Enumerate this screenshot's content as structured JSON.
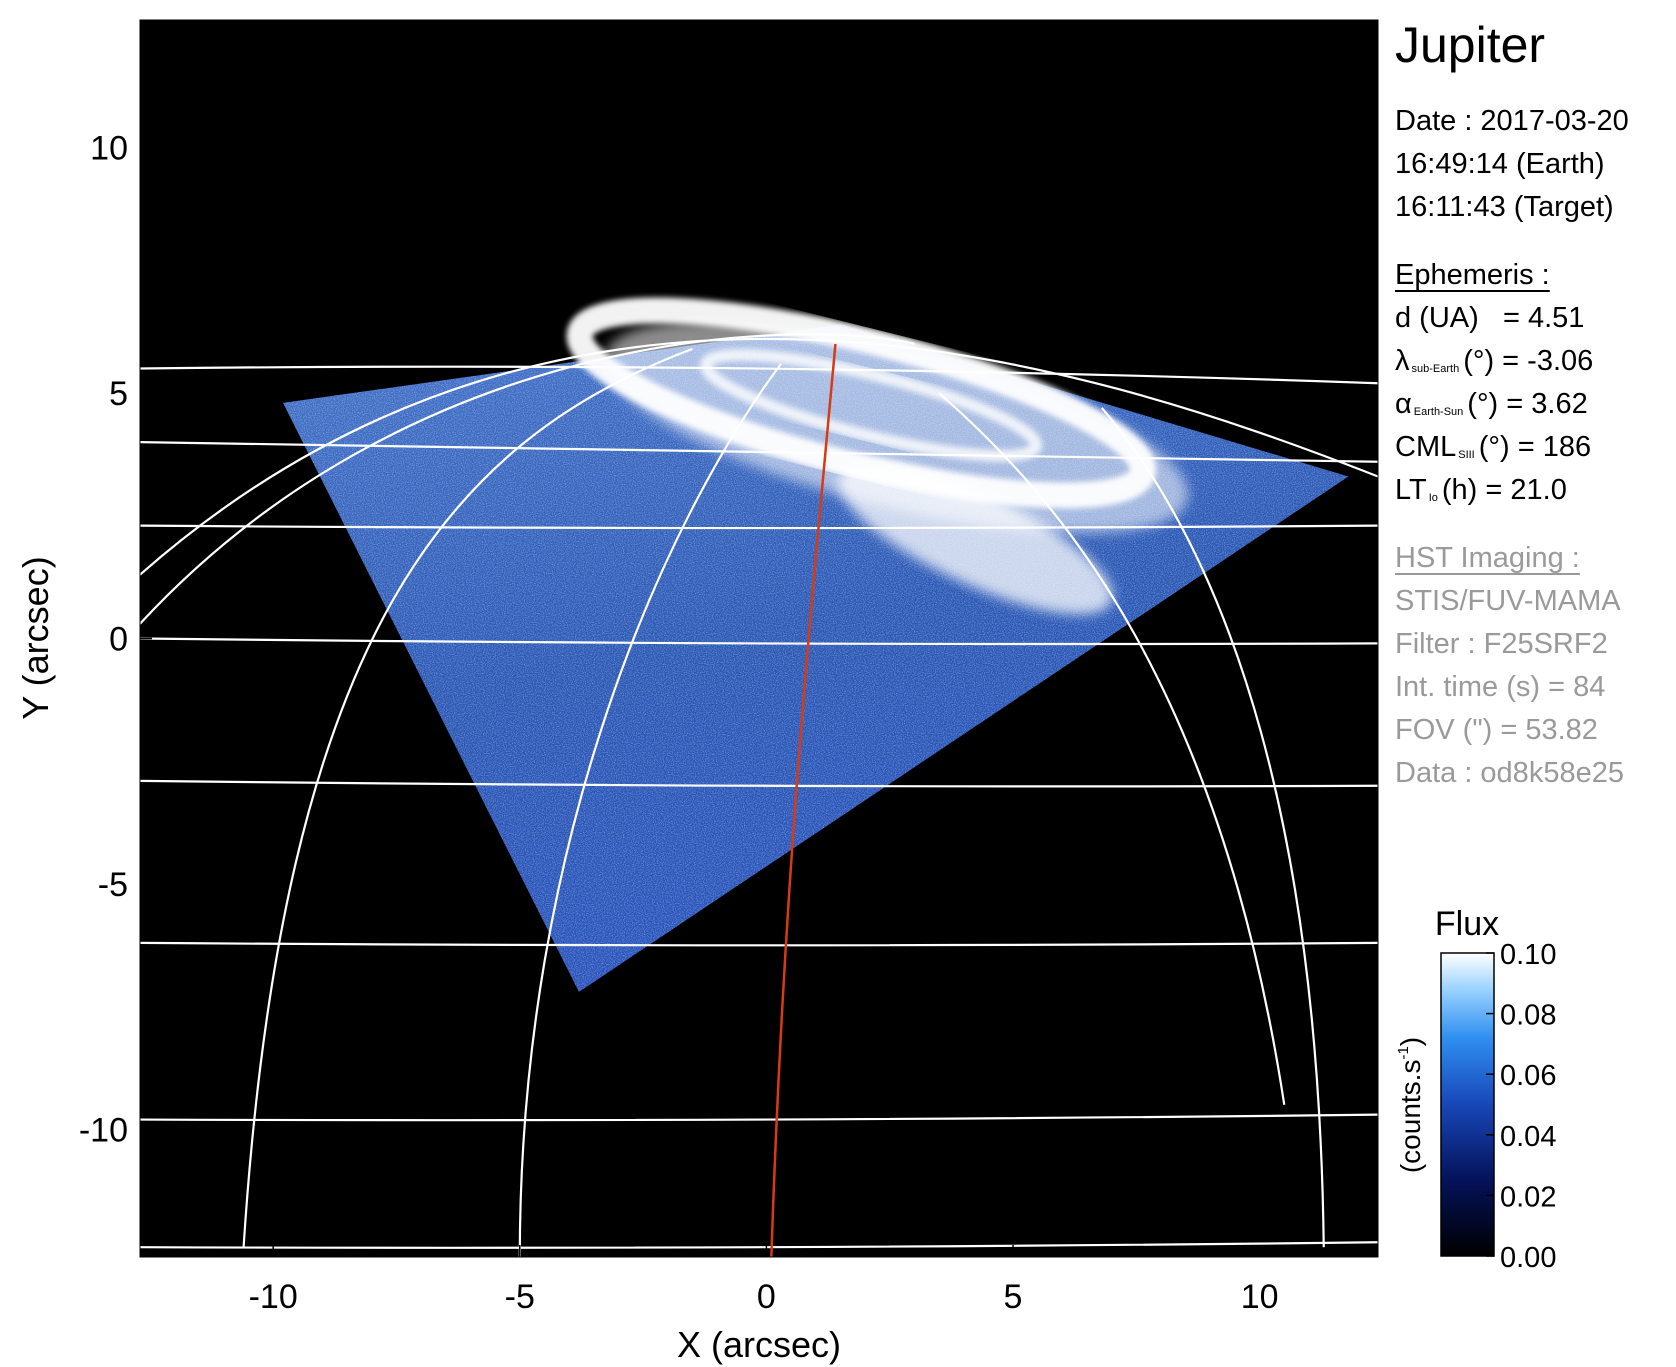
{
  "header": {
    "target": "Jupiter",
    "date_line": "Date : 2017-03-20",
    "time_earth": "16:49:14 (Earth)",
    "time_target": "16:11:43 (Target)"
  },
  "ephemeris": {
    "heading": "Ephemeris :",
    "d_label": "d (UA)",
    "d_value": "= 4.51",
    "lat_symbol": "λ",
    "lat_sub": "sub-Earth",
    "lat_value": "(°) = -3.06",
    "alpha_symbol": "α",
    "alpha_sub": "Earth-Sun",
    "alpha_value": "(°) = 3.62",
    "cml_symbol": "CML",
    "cml_sub": "SIII",
    "cml_value": "(°) = 186",
    "lt_symbol": "LT",
    "lt_sub": "Io",
    "lt_value": "(h) = 21.0"
  },
  "hst": {
    "heading": "HST Imaging :",
    "instrument": "STIS/FUV-MAMA",
    "filter": "Filter : F25SRF2",
    "int_time": "Int. time (s) = 84",
    "fov": "FOV (\") = 53.82",
    "dataset": "Data : od8k58e25"
  },
  "colorbar": {
    "title": "Flux",
    "label": "(counts.s",
    "label_sup": "-1",
    "label_close": ")",
    "ticks": [
      "0.10",
      "0.08",
      "0.06",
      "0.04",
      "0.02",
      "0.00"
    ],
    "range": [
      0,
      0.1
    ]
  },
  "colors": {
    "background": "#000000",
    "grid": "#ffffff",
    "cml_meridian": "#d83a12",
    "emission_low": "#0a1a6e",
    "emission_mid": "#2e7fe0",
    "emission_high": "#ffffff"
  },
  "chart_data": {
    "type": "heatmap",
    "title": "Jupiter",
    "xlabel": "X (arcsec)",
    "ylabel": "Y (arcsec)",
    "xlim": [
      -12.7,
      12.4
    ],
    "ylim": [
      -12.6,
      12.6
    ],
    "x_ticks": [
      -10,
      -5,
      0,
      5,
      10
    ],
    "x_tick_labels": [
      "-10",
      "-5",
      "0",
      "5",
      "10"
    ],
    "y_ticks": [
      10,
      5,
      0,
      -5,
      -10
    ],
    "y_tick_labels": [
      "10",
      "5",
      "0",
      "-5",
      "-10"
    ],
    "colorbar_range": [
      0,
      0.1
    ],
    "image_footprint": [
      [
        -9.8,
        4.8
      ],
      [
        -3.8,
        -7.2
      ],
      [
        11.8,
        3.3
      ],
      [
        1.5,
        6.4
      ]
    ],
    "auroral_oval_center": [
      1.9,
      4.7
    ],
    "cml_meridian": [
      [
        0.1,
        -12.6
      ],
      [
        0.35,
        -5
      ],
      [
        0.85,
        0
      ],
      [
        1.4,
        6.0
      ]
    ],
    "grid": true
  }
}
